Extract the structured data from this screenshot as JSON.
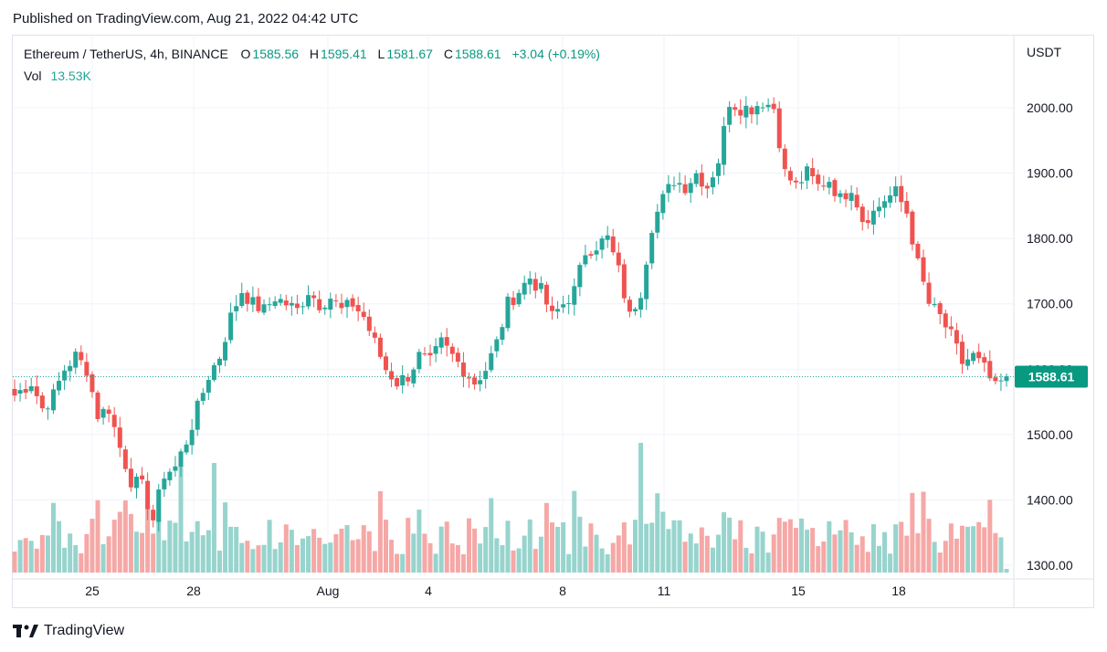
{
  "header": {
    "published": "Published on TradingView.com, Aug 21, 2022 04:42 UTC"
  },
  "legend": {
    "symbol": "Ethereum / TetherUS, 4h, BINANCE",
    "o_label": "O",
    "o_value": "1585.56",
    "h_label": "H",
    "h_value": "1595.41",
    "l_label": "L",
    "l_value": "1581.67",
    "c_label": "C",
    "c_value": "1588.61",
    "change": "+3.04 (+0.19%)",
    "vol_label": "Vol",
    "vol_value": "13.53K"
  },
  "currency": "USDT",
  "logo_text": "TradingView",
  "colors": {
    "up": "#26a69a",
    "down": "#ef5350",
    "up_text": "#089981",
    "vol_up": "#97d4cd",
    "vol_down": "#f5a8a6",
    "grid": "#f0f3fa"
  },
  "chart_data": {
    "type": "candlestick",
    "title": "Ethereum / TetherUS, 4h, BINANCE",
    "y_axis": {
      "unit": "USDT",
      "ticks": [
        "1300.00",
        "1400.00",
        "1500.00",
        "1600.00",
        "1700.00",
        "1800.00",
        "1900.00",
        "2000.00"
      ],
      "range": [
        1290,
        2080
      ],
      "side": "right"
    },
    "x_axis": {
      "ticks": [
        "25",
        "28",
        "Aug",
        "4",
        "8",
        "11",
        "15",
        "18"
      ]
    },
    "last_price": "1588.61",
    "anchors": [
      [
        0,
        1560
      ],
      [
        3,
        1580
      ],
      [
        5,
        1540
      ],
      [
        7,
        1560
      ],
      [
        9,
        1600
      ],
      [
        11,
        1620
      ],
      [
        13,
        1600
      ],
      [
        15,
        1530
      ],
      [
        17,
        1540
      ],
      [
        19,
        1480
      ],
      [
        21,
        1430
      ],
      [
        23,
        1420
      ],
      [
        25,
        1370
      ],
      [
        27,
        1440
      ],
      [
        29,
        1450
      ],
      [
        31,
        1490
      ],
      [
        33,
        1540
      ],
      [
        35,
        1590
      ],
      [
        37,
        1620
      ],
      [
        39,
        1680
      ],
      [
        41,
        1720
      ],
      [
        43,
        1700
      ],
      [
        45,
        1690
      ],
      [
        47,
        1710
      ],
      [
        49,
        1700
      ],
      [
        51,
        1690
      ],
      [
        53,
        1720
      ],
      [
        55,
        1700
      ],
      [
        57,
        1710
      ],
      [
        59,
        1690
      ],
      [
        61,
        1700
      ],
      [
        63,
        1680
      ],
      [
        65,
        1640
      ],
      [
        67,
        1600
      ],
      [
        69,
        1580
      ],
      [
        71,
        1590
      ],
      [
        73,
        1620
      ],
      [
        75,
        1610
      ],
      [
        77,
        1640
      ],
      [
        79,
        1620
      ],
      [
        81,
        1600
      ],
      [
        83,
        1580
      ],
      [
        85,
        1600
      ],
      [
        87,
        1640
      ],
      [
        89,
        1700
      ],
      [
        91,
        1720
      ],
      [
        93,
        1740
      ],
      [
        95,
        1720
      ],
      [
        97,
        1680
      ],
      [
        99,
        1700
      ],
      [
        101,
        1720
      ],
      [
        103,
        1780
      ],
      [
        105,
        1790
      ],
      [
        107,
        1800
      ],
      [
        109,
        1750
      ],
      [
        111,
        1680
      ],
      [
        113,
        1720
      ],
      [
        115,
        1820
      ],
      [
        117,
        1860
      ],
      [
        119,
        1890
      ],
      [
        121,
        1880
      ],
      [
        123,
        1900
      ],
      [
        125,
        1880
      ],
      [
        127,
        1920
      ],
      [
        129,
        2010
      ],
      [
        131,
        2000
      ],
      [
        133,
        2000
      ],
      [
        135,
        2010
      ],
      [
        137,
        2000
      ],
      [
        139,
        1900
      ],
      [
        141,
        1880
      ],
      [
        143,
        1900
      ],
      [
        145,
        1880
      ],
      [
        147,
        1890
      ],
      [
        149,
        1860
      ],
      [
        151,
        1880
      ],
      [
        153,
        1830
      ],
      [
        155,
        1840
      ],
      [
        157,
        1860
      ],
      [
        159,
        1870
      ],
      [
        161,
        1840
      ],
      [
        163,
        1760
      ],
      [
        165,
        1700
      ],
      [
        167,
        1680
      ],
      [
        169,
        1650
      ],
      [
        171,
        1610
      ],
      [
        173,
        1620
      ],
      [
        175,
        1600
      ],
      [
        177,
        1570
      ],
      [
        179,
        1589
      ]
    ],
    "volume_hint": "13.53K last bar"
  }
}
